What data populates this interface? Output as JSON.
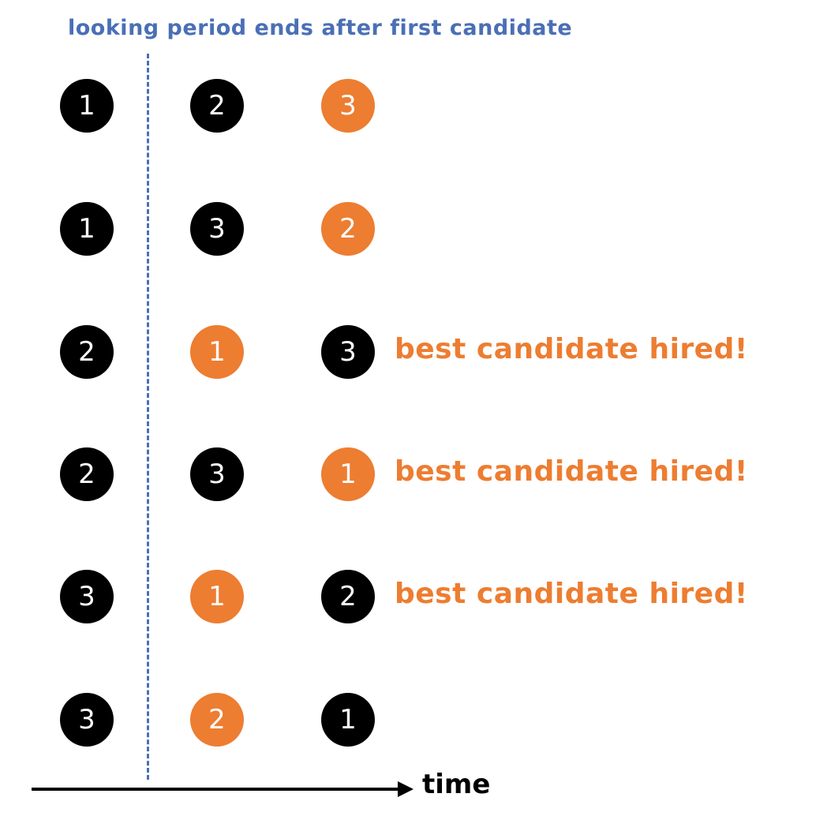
{
  "header": {
    "title": "looking period ends after first candidate"
  },
  "colors": {
    "header_text": "#4a6fb5",
    "divider": "#4a6fb5",
    "black_circle": "#000000",
    "orange": "#ed7d31",
    "axis": "#000000"
  },
  "rows": [
    {
      "candidates": [
        {
          "rank": "1",
          "hired": false
        },
        {
          "rank": "2",
          "hired": false
        },
        {
          "rank": "3",
          "hired": true
        }
      ],
      "note": ""
    },
    {
      "candidates": [
        {
          "rank": "1",
          "hired": false
        },
        {
          "rank": "3",
          "hired": false
        },
        {
          "rank": "2",
          "hired": true
        }
      ],
      "note": ""
    },
    {
      "candidates": [
        {
          "rank": "2",
          "hired": false
        },
        {
          "rank": "1",
          "hired": true
        },
        {
          "rank": "3",
          "hired": false
        }
      ],
      "note": "best candidate hired!"
    },
    {
      "candidates": [
        {
          "rank": "2",
          "hired": false
        },
        {
          "rank": "3",
          "hired": false
        },
        {
          "rank": "1",
          "hired": true
        }
      ],
      "note": "best candidate hired!"
    },
    {
      "candidates": [
        {
          "rank": "3",
          "hired": false
        },
        {
          "rank": "1",
          "hired": true
        },
        {
          "rank": "2",
          "hired": false
        }
      ],
      "note": "best candidate hired!"
    },
    {
      "candidates": [
        {
          "rank": "3",
          "hired": false
        },
        {
          "rank": "2",
          "hired": true
        },
        {
          "rank": "1",
          "hired": false
        }
      ],
      "note": ""
    }
  ],
  "axis": {
    "label": "time"
  }
}
